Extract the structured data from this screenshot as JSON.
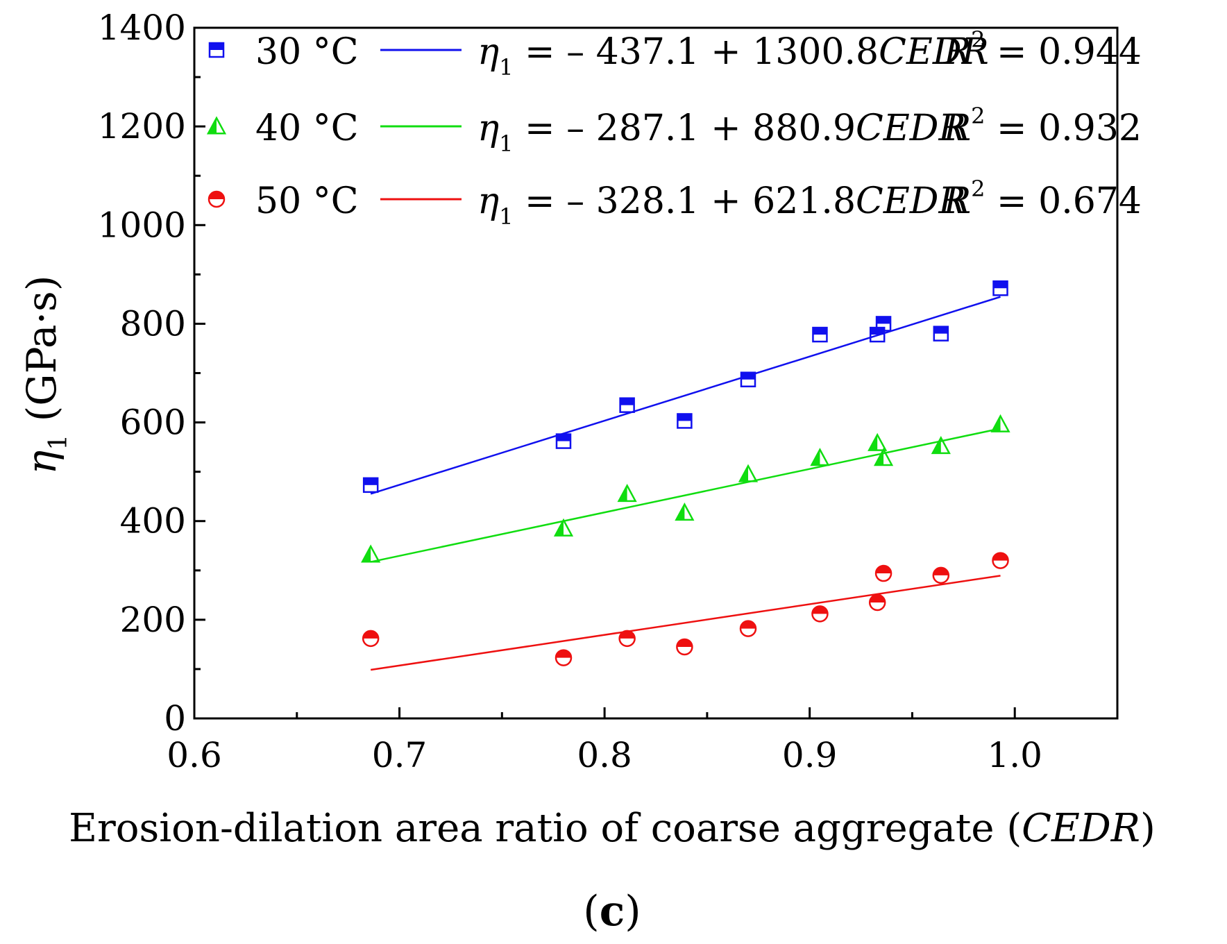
{
  "chart_data": {
    "type": "scatter",
    "title": "",
    "xlabel": "Erosion-dilation area ratio of coarse aggregate (",
    "xlabel_italic": "CEDR",
    "xlabel_close": ")",
    "ylabel_symbol": "η",
    "ylabel_subscript": "1",
    "ylabel_unit": "(GPa·s)",
    "xlim": [
      0.6,
      1.05
    ],
    "ylim": [
      0,
      1400
    ],
    "xticks": [
      0.6,
      0.7,
      0.8,
      0.9,
      1.0
    ],
    "xtick_labels": [
      "0.6",
      "0.7",
      "0.8",
      "0.9",
      "1.0"
    ],
    "yticks": [
      0,
      200,
      400,
      600,
      800,
      1000,
      1200,
      1400
    ],
    "ytick_labels": [
      "0",
      "200",
      "400",
      "600",
      "800",
      "1000",
      "1200",
      "1400"
    ],
    "legend_position": "top-left",
    "panel_label": "c",
    "series": [
      {
        "name": "30 °C",
        "marker": "square-half",
        "color": "#1010ee",
        "x": [
          0.686,
          0.78,
          0.811,
          0.839,
          0.87,
          0.905,
          0.933,
          0.936,
          0.964,
          0.993
        ],
        "y": [
          473,
          562,
          635,
          603,
          687,
          778,
          778,
          800,
          780,
          872
        ],
        "fit": {
          "intercept": -437.1,
          "slope": 1300.8,
          "x_range": [
            0.686,
            0.993
          ]
        },
        "equation": {
          "lhs": "η",
          "sub": "1",
          "text": " = – 437.1 + 1300.8",
          "var": "CEDR",
          "r2_label": "R",
          "r2_sup": "2",
          "r2_value": " = 0.944"
        }
      },
      {
        "name": "40 °C",
        "marker": "triangle-half",
        "color": "#10dd10",
        "x": [
          0.686,
          0.78,
          0.811,
          0.839,
          0.87,
          0.905,
          0.933,
          0.936,
          0.964,
          0.993
        ],
        "y": [
          332,
          385,
          455,
          417,
          495,
          528,
          558,
          528,
          552,
          596
        ],
        "fit": {
          "intercept": -287.1,
          "slope": 880.9,
          "x_range": [
            0.686,
            0.993
          ]
        },
        "equation": {
          "lhs": "η",
          "sub": "1",
          "text": " = – 287.1 + 880.9",
          "var": "CEDR",
          "r2_label": "R",
          "r2_sup": "2",
          "r2_value": " = 0.932"
        }
      },
      {
        "name": "50 °C",
        "marker": "circle-half",
        "color": "#ee1010",
        "x": [
          0.686,
          0.78,
          0.811,
          0.839,
          0.87,
          0.905,
          0.933,
          0.936,
          0.964,
          0.993
        ],
        "y": [
          162,
          123,
          162,
          145,
          182,
          212,
          235,
          294,
          290,
          320
        ],
        "fit": {
          "intercept": -328.1,
          "slope": 621.8,
          "x_range": [
            0.686,
            0.993
          ]
        },
        "equation": {
          "lhs": "η",
          "sub": "1",
          "text": " = – 328.1 + 621.8",
          "var": "CEDR",
          "r2_label": "R",
          "r2_sup": "2",
          "r2_value": " = 0.674"
        }
      }
    ]
  }
}
